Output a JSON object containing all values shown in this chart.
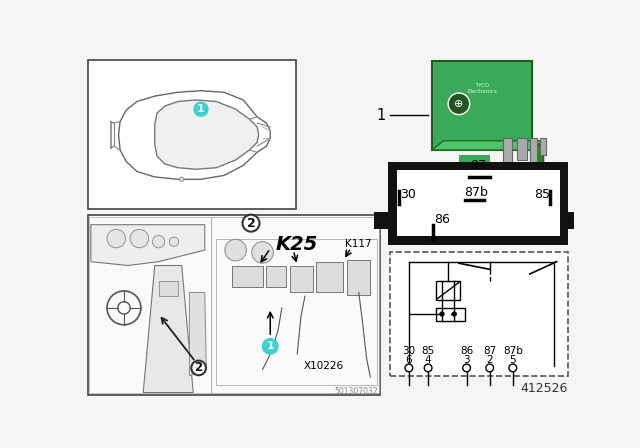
{
  "bg_color": "#f5f5f5",
  "part_number": "412526",
  "cyan_color": "#3ECFCF",
  "car_outline_color": "#888888",
  "box_edge_color": "#333333",
  "pin_box_black": "#111111",
  "K25_label": "K25",
  "K117_label": "K117",
  "X10226_label": "X10226",
  "diagram_code": "501307032",
  "relay_green": "#3aaa5a",
  "relay_dark_green": "#2a7a3a"
}
